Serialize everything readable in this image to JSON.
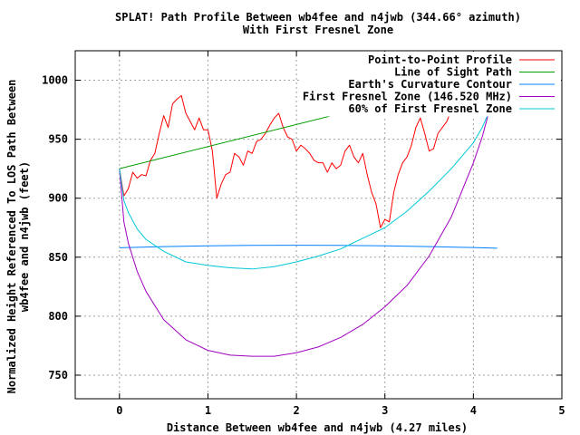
{
  "chart_data": {
    "type": "line",
    "title_line1": "SPLAT! Path Profile Between wb4fee and n4jwb (344.66° azimuth)",
    "title_line2": "With First Fresnel Zone",
    "xlabel": "Distance Between wb4fee and n4jwb (4.27 miles)",
    "ylabel_line1": "Normalized Height Referenced To LOS Path Between",
    "ylabel_line2": "wb4fee and n4jwb (feet)",
    "xlim": [
      -0.5,
      5
    ],
    "ylim": [
      730,
      1025
    ],
    "x_ticks": [
      0,
      1,
      2,
      3,
      4,
      5
    ],
    "y_ticks": [
      750,
      800,
      850,
      900,
      950,
      1000
    ],
    "grid": true,
    "legend_position": "top-right",
    "series": [
      {
        "name": "Point-to-Point Profile",
        "color": "#ff0000",
        "x": [
          0,
          0.05,
          0.1,
          0.15,
          0.2,
          0.25,
          0.3,
          0.35,
          0.4,
          0.45,
          0.5,
          0.55,
          0.6,
          0.65,
          0.7,
          0.75,
          0.8,
          0.85,
          0.9,
          0.95,
          1.0,
          1.05,
          1.1,
          1.15,
          1.2,
          1.25,
          1.3,
          1.35,
          1.4,
          1.45,
          1.5,
          1.55,
          1.6,
          1.65,
          1.7,
          1.75,
          1.8,
          1.85,
          1.9,
          1.95,
          2.0,
          2.05,
          2.1,
          2.15,
          2.2,
          2.25,
          2.3,
          2.35,
          2.4,
          2.45,
          2.5,
          2.55,
          2.6,
          2.65,
          2.7,
          2.75,
          2.8,
          2.85,
          2.9,
          2.95,
          3.0,
          3.05,
          3.1,
          3.15,
          3.2,
          3.25,
          3.3,
          3.35,
          3.4,
          3.45,
          3.5,
          3.55,
          3.6,
          3.65,
          3.7,
          3.75,
          3.8,
          3.85,
          3.9,
          3.95,
          4.0,
          4.05,
          4.1,
          4.15,
          4.2,
          4.27
        ],
        "y": [
          925,
          902,
          908,
          922,
          917,
          920,
          919,
          932,
          938,
          955,
          970,
          960,
          980,
          984,
          987,
          972,
          965,
          958,
          968,
          958,
          958,
          940,
          900,
          912,
          920,
          922,
          938,
          935,
          928,
          940,
          938,
          948,
          950,
          955,
          962,
          968,
          972,
          960,
          952,
          950,
          940,
          945,
          942,
          938,
          932,
          930,
          930,
          922,
          930,
          925,
          928,
          940,
          945,
          935,
          930,
          938,
          920,
          905,
          895,
          875,
          882,
          880,
          905,
          920,
          930,
          935,
          945,
          960,
          968,
          955,
          940,
          942,
          955,
          960,
          965,
          975,
          982,
          990,
          995,
          998,
          1000,
          992,
          985,
          1000,
          1003,
          1005
        ]
      },
      {
        "name": "Line of Sight Path",
        "color": "#00a000",
        "x": [
          0,
          4.27
        ],
        "y": [
          925,
          1005
        ]
      },
      {
        "name": "Earth's Curvature Contour",
        "color": "#0080ff",
        "x": [
          0,
          0.5,
          1.0,
          1.5,
          2.0,
          2.5,
          3.0,
          3.5,
          4.0,
          4.27
        ],
        "y": [
          858,
          859,
          859.6,
          860,
          860.1,
          860,
          859.6,
          859,
          858.2,
          857.6
        ]
      },
      {
        "name": "First Fresnel Zone (146.520 MHz)",
        "color": "#a000c0",
        "x": [
          0,
          0.05,
          0.1,
          0.2,
          0.3,
          0.5,
          0.75,
          1.0,
          1.25,
          1.5,
          1.75,
          2.0,
          2.25,
          2.5,
          2.75,
          3.0,
          3.25,
          3.5,
          3.75,
          4.0,
          4.1,
          4.2,
          4.27
        ],
        "y": [
          925,
          880,
          862,
          838,
          821,
          797,
          780,
          771,
          767,
          766,
          766,
          769,
          774,
          782,
          793,
          808,
          826,
          851,
          884,
          930,
          952,
          980,
          1005
        ]
      },
      {
        "name": "60% of First Fresnel Zone",
        "color": "#00c8d8",
        "x": [
          0,
          0.05,
          0.1,
          0.2,
          0.3,
          0.5,
          0.75,
          1.0,
          1.25,
          1.5,
          1.75,
          2.0,
          2.25,
          2.5,
          2.75,
          3.0,
          3.25,
          3.5,
          3.75,
          4.0,
          4.1,
          4.2,
          4.27
        ],
        "y": [
          925,
          898,
          888,
          874,
          865,
          855,
          846,
          843,
          841,
          840,
          842,
          846,
          851,
          857,
          866,
          875,
          889,
          906,
          925,
          947,
          960,
          977,
          1005
        ]
      }
    ]
  }
}
